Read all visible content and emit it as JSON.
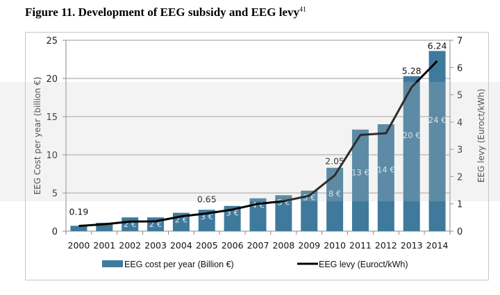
{
  "figure_title": "Figure 11. Development of EEG subsidy and EEG levy",
  "footnote_ref": "41",
  "chart_data": {
    "type": "bar+line",
    "title": "Development of EEG subsidy and EEG levy",
    "categories": [
      "2000",
      "2001",
      "2002",
      "2003",
      "2004",
      "2005",
      "2006",
      "2007",
      "2008",
      "2009",
      "2010",
      "2011",
      "2012",
      "2013",
      "2014"
    ],
    "series": [
      {
        "name": "EEG cost per year (Billion €)",
        "type": "bar",
        "axis": "left",
        "color": "#3f7a9c",
        "values": [
          0.7,
          1.1,
          1.8,
          1.8,
          2.4,
          2.8,
          3.3,
          4.3,
          4.7,
          5.3,
          8.3,
          13.3,
          14.0,
          20.3,
          23.6
        ],
        "data_labels": [
          "",
          "",
          "2 €",
          "2 €",
          "2 €",
          "3 €",
          "3 €",
          "4 €",
          "5 €",
          "5 €",
          "8 €",
          "13 €",
          "14 €",
          "20 €",
          "24 €"
        ]
      },
      {
        "name": "EEG levy (Euroct/kWh)",
        "type": "line",
        "axis": "right",
        "color": "#000000",
        "values": [
          0.19,
          0.25,
          0.35,
          0.36,
          0.54,
          0.65,
          0.79,
          1.0,
          1.1,
          1.3,
          2.05,
          3.53,
          3.59,
          5.28,
          6.24
        ],
        "data_labels": [
          "0.19",
          "",
          "",
          "",
          "",
          "0.65",
          "",
          "",
          "",
          "",
          "2.05",
          "",
          "",
          "5.28",
          "6.24"
        ]
      }
    ],
    "ylabel": "EEG Cost per year (billion €)",
    "ylim": [
      0,
      25
    ],
    "yticks": [
      "0",
      "5",
      "10",
      "15",
      "20",
      "25"
    ],
    "y2label": "EEG levy  (Euroct/kWh)",
    "y2lim": [
      0,
      7
    ],
    "y2ticks": [
      "0",
      "1",
      "2",
      "3",
      "4",
      "5",
      "6",
      "7"
    ],
    "grid": true,
    "legend_position": "bottom"
  }
}
